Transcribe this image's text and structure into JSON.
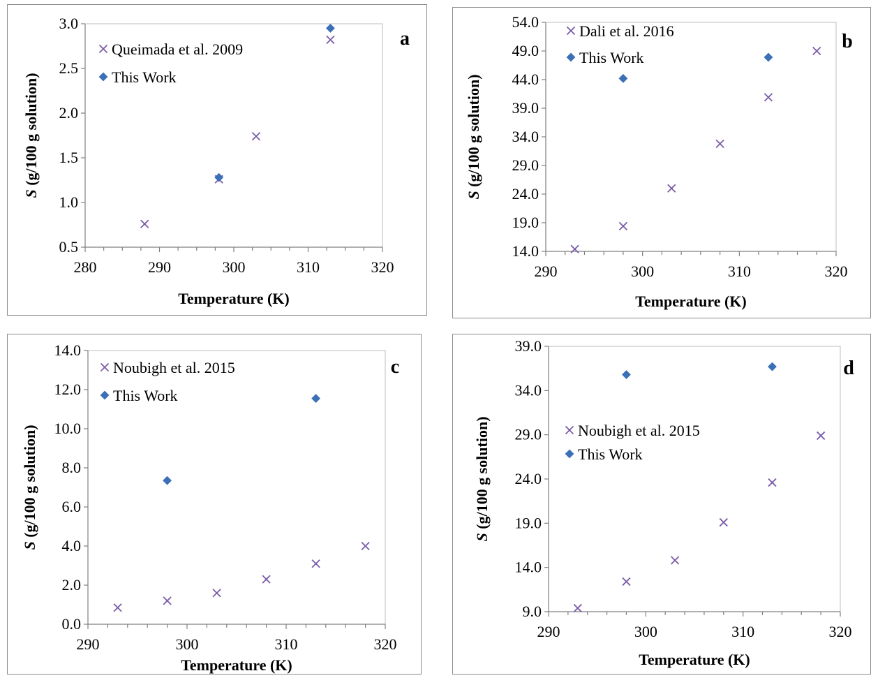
{
  "colors": {
    "literature": "#7a5ca8",
    "this_work": "#3b6fb6"
  },
  "chart_data": [
    {
      "type": "scatter",
      "panel_letter": "a",
      "xlabel": "Temperature (K)",
      "ylabel_italic": "S",
      "ylabel_rest": " (g/100 g solution)",
      "xlim": [
        280,
        320
      ],
      "ylim": [
        0.5,
        3.0
      ],
      "x_ticks": [
        "280",
        "290",
        "300",
        "310",
        "320"
      ],
      "y_ticks": [
        "0.5",
        "1.0",
        "1.5",
        "2.0",
        "2.5",
        "3.0"
      ],
      "x_minor_step": 2.5,
      "legend_position": "top-left",
      "grid": false,
      "series": [
        {
          "name": "Queimada et al. 2009",
          "marker": "x",
          "x": [
            288,
            298,
            303,
            313
          ],
          "y": [
            0.76,
            1.26,
            1.74,
            2.82
          ]
        },
        {
          "name": "This Work",
          "marker": "diamond",
          "x": [
            298,
            313
          ],
          "y": [
            1.28,
            2.95
          ]
        }
      ]
    },
    {
      "type": "scatter",
      "panel_letter": "b",
      "xlabel": "Temperature (K)",
      "ylabel_italic": "S",
      "ylabel_rest": " (g/100 g solution)",
      "xlim": [
        290,
        320
      ],
      "ylim": [
        14.0,
        54.0
      ],
      "x_ticks": [
        "290",
        "300",
        "310",
        "320"
      ],
      "y_ticks": [
        "14.0",
        "19.0",
        "24.0",
        "29.0",
        "34.0",
        "39.0",
        "44.0",
        "49.0",
        "54.0"
      ],
      "x_minor_step": 2,
      "legend_position": "top-left",
      "grid": false,
      "series": [
        {
          "name": "Dali et al. 2016",
          "marker": "x",
          "x": [
            293,
            298,
            303,
            308,
            313,
            318
          ],
          "y": [
            14.4,
            18.4,
            25.0,
            32.8,
            40.9,
            49.0
          ]
        },
        {
          "name": "This Work",
          "marker": "diamond",
          "x": [
            298,
            313
          ],
          "y": [
            44.2,
            47.9
          ]
        }
      ]
    },
    {
      "type": "scatter",
      "panel_letter": "c",
      "xlabel": "Temperature (K)",
      "ylabel_italic": "S",
      "ylabel_rest": " (g/100 g solution)",
      "xlim": [
        290,
        320
      ],
      "ylim": [
        0.0,
        14.0
      ],
      "x_ticks": [
        "290",
        "300",
        "310",
        "320"
      ],
      "y_ticks": [
        "0.0",
        "2.0",
        "4.0",
        "6.0",
        "8.0",
        "10.0",
        "12.0",
        "14.0"
      ],
      "x_minor_step": 2,
      "legend_position": "top-left",
      "grid": false,
      "series": [
        {
          "name": "Noubigh et al. 2015",
          "marker": "x",
          "x": [
            293,
            298,
            303,
            308,
            313,
            318
          ],
          "y": [
            0.85,
            1.2,
            1.6,
            2.3,
            3.1,
            4.0
          ]
        },
        {
          "name": "This Work",
          "marker": "diamond",
          "x": [
            298,
            313
          ],
          "y": [
            7.35,
            11.55
          ]
        }
      ]
    },
    {
      "type": "scatter",
      "panel_letter": "d",
      "xlabel": "Temperature (K)",
      "ylabel_italic": "S",
      "ylabel_rest": " (g/100 g solution)",
      "xlim": [
        290,
        320
      ],
      "ylim": [
        9.0,
        39.0
      ],
      "x_ticks": [
        "290",
        "300",
        "310",
        "320"
      ],
      "y_ticks": [
        "9.0",
        "14.0",
        "19.0",
        "24.0",
        "29.0",
        "34.0",
        "39.0"
      ],
      "x_minor_step": 2,
      "legend_position": "middle-left",
      "grid": false,
      "series": [
        {
          "name": "Noubigh et al. 2015",
          "marker": "x",
          "x": [
            293,
            298,
            303,
            308,
            313,
            318
          ],
          "y": [
            9.4,
            12.4,
            14.8,
            19.1,
            23.6,
            28.9
          ]
        },
        {
          "name": "This Work",
          "marker": "diamond",
          "x": [
            298,
            313
          ],
          "y": [
            35.8,
            36.7
          ]
        }
      ]
    }
  ]
}
